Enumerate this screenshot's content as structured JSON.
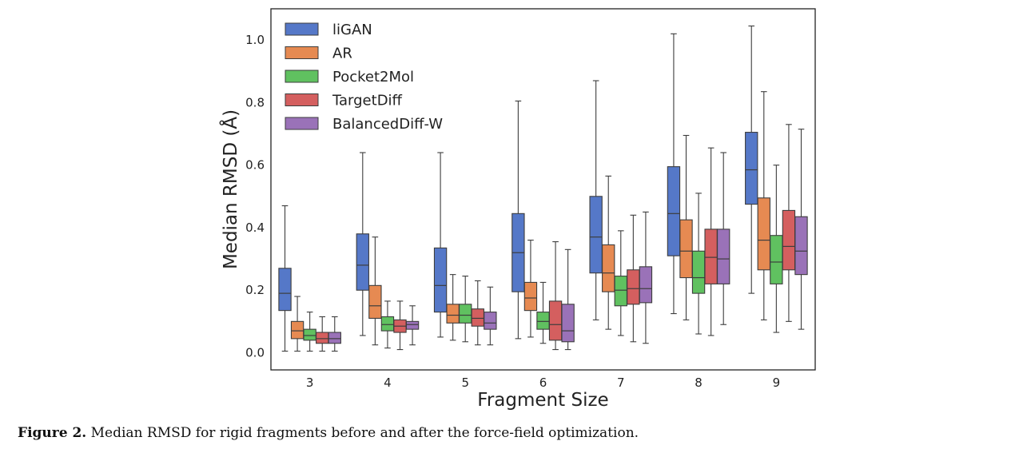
{
  "figure": {
    "caption_label": "Figure 2.",
    "caption_text": " Median RMSD for rigid fragments before and after the force-field optimization."
  },
  "chart_data": {
    "type": "boxplot",
    "xlabel": "Fragment Size",
    "ylabel": "Median RMSD (Å)",
    "categories": [
      "3",
      "4",
      "5",
      "6",
      "7",
      "8",
      "9"
    ],
    "ylim": [
      -0.055,
      1.1
    ],
    "yticks": [
      "0.0",
      "0.2",
      "0.4",
      "0.6",
      "0.8",
      "1.0"
    ],
    "ytick_values": [
      0.0,
      0.2,
      0.4,
      0.6,
      0.8,
      1.0
    ],
    "grid": false,
    "legend_position": "top-left",
    "series": [
      {
        "name": "liGAN",
        "color": "#4C72B0",
        "fill": "#5578C8",
        "boxes": [
          {
            "whislo": 0.005,
            "q1": 0.135,
            "med": 0.19,
            "q3": 0.27,
            "whishi": 0.47
          },
          {
            "whislo": 0.055,
            "q1": 0.2,
            "med": 0.28,
            "q3": 0.38,
            "whishi": 0.64
          },
          {
            "whislo": 0.05,
            "q1": 0.13,
            "med": 0.215,
            "q3": 0.335,
            "whishi": 0.64
          },
          {
            "whislo": 0.045,
            "q1": 0.195,
            "med": 0.32,
            "q3": 0.445,
            "whishi": 0.805
          },
          {
            "whislo": 0.105,
            "q1": 0.255,
            "med": 0.37,
            "q3": 0.5,
            "whishi": 0.87
          },
          {
            "whislo": 0.125,
            "q1": 0.31,
            "med": 0.445,
            "q3": 0.595,
            "whishi": 1.02
          },
          {
            "whislo": 0.19,
            "q1": 0.475,
            "med": 0.585,
            "q3": 0.705,
            "whishi": 1.045
          }
        ]
      },
      {
        "name": "AR",
        "color": "#DD8452",
        "fill": "#E68A52",
        "boxes": [
          {
            "whislo": 0.005,
            "q1": 0.045,
            "med": 0.07,
            "q3": 0.1,
            "whishi": 0.18
          },
          {
            "whislo": 0.025,
            "q1": 0.11,
            "med": 0.15,
            "q3": 0.215,
            "whishi": 0.37
          },
          {
            "whislo": 0.04,
            "q1": 0.095,
            "med": 0.12,
            "q3": 0.155,
            "whishi": 0.25
          },
          {
            "whislo": 0.05,
            "q1": 0.135,
            "med": 0.175,
            "q3": 0.225,
            "whishi": 0.36
          },
          {
            "whislo": 0.075,
            "q1": 0.195,
            "med": 0.255,
            "q3": 0.345,
            "whishi": 0.565
          },
          {
            "whislo": 0.105,
            "q1": 0.24,
            "med": 0.325,
            "q3": 0.425,
            "whishi": 0.695
          },
          {
            "whislo": 0.105,
            "q1": 0.265,
            "med": 0.36,
            "q3": 0.495,
            "whishi": 0.835
          }
        ]
      },
      {
        "name": "Pocket2Mol",
        "color": "#55A868",
        "fill": "#60C160",
        "boxes": [
          {
            "whislo": 0.005,
            "q1": 0.04,
            "med": 0.055,
            "q3": 0.075,
            "whishi": 0.13
          },
          {
            "whislo": 0.015,
            "q1": 0.07,
            "med": 0.09,
            "q3": 0.115,
            "whishi": 0.165
          },
          {
            "whislo": 0.035,
            "q1": 0.095,
            "med": 0.12,
            "q3": 0.155,
            "whishi": 0.245
          },
          {
            "whislo": 0.03,
            "q1": 0.075,
            "med": 0.1,
            "q3": 0.13,
            "whishi": 0.225
          },
          {
            "whislo": 0.055,
            "q1": 0.15,
            "med": 0.2,
            "q3": 0.245,
            "whishi": 0.39
          },
          {
            "whislo": 0.06,
            "q1": 0.19,
            "med": 0.24,
            "q3": 0.325,
            "whishi": 0.51
          },
          {
            "whislo": 0.065,
            "q1": 0.22,
            "med": 0.29,
            "q3": 0.375,
            "whishi": 0.6
          }
        ]
      },
      {
        "name": "TargetDiff",
        "color": "#C44E52",
        "fill": "#D45F5F",
        "boxes": [
          {
            "whislo": 0.005,
            "q1": 0.03,
            "med": 0.045,
            "q3": 0.065,
            "whishi": 0.115
          },
          {
            "whislo": 0.01,
            "q1": 0.065,
            "med": 0.085,
            "q3": 0.105,
            "whishi": 0.165
          },
          {
            "whislo": 0.025,
            "q1": 0.085,
            "med": 0.11,
            "q3": 0.14,
            "whishi": 0.23
          },
          {
            "whislo": 0.01,
            "q1": 0.04,
            "med": 0.09,
            "q3": 0.165,
            "whishi": 0.355
          },
          {
            "whislo": 0.035,
            "q1": 0.155,
            "med": 0.205,
            "q3": 0.265,
            "whishi": 0.44
          },
          {
            "whislo": 0.055,
            "q1": 0.22,
            "med": 0.305,
            "q3": 0.395,
            "whishi": 0.655
          },
          {
            "whislo": 0.1,
            "q1": 0.265,
            "med": 0.34,
            "q3": 0.455,
            "whishi": 0.73
          }
        ]
      },
      {
        "name": "BalancedDiff-W",
        "color": "#8172B3",
        "fill": "#9A72B8",
        "boxes": [
          {
            "whislo": 0.005,
            "q1": 0.03,
            "med": 0.045,
            "q3": 0.065,
            "whishi": 0.115
          },
          {
            "whislo": 0.025,
            "q1": 0.075,
            "med": 0.09,
            "q3": 0.1,
            "whishi": 0.15
          },
          {
            "whislo": 0.025,
            "q1": 0.075,
            "med": 0.095,
            "q3": 0.13,
            "whishi": 0.21
          },
          {
            "whislo": 0.01,
            "q1": 0.035,
            "med": 0.07,
            "q3": 0.155,
            "whishi": 0.33
          },
          {
            "whislo": 0.03,
            "q1": 0.16,
            "med": 0.205,
            "q3": 0.275,
            "whishi": 0.45
          },
          {
            "whislo": 0.09,
            "q1": 0.22,
            "med": 0.3,
            "q3": 0.395,
            "whishi": 0.64
          },
          {
            "whislo": 0.075,
            "q1": 0.25,
            "med": 0.325,
            "q3": 0.435,
            "whishi": 0.715
          }
        ]
      }
    ]
  }
}
